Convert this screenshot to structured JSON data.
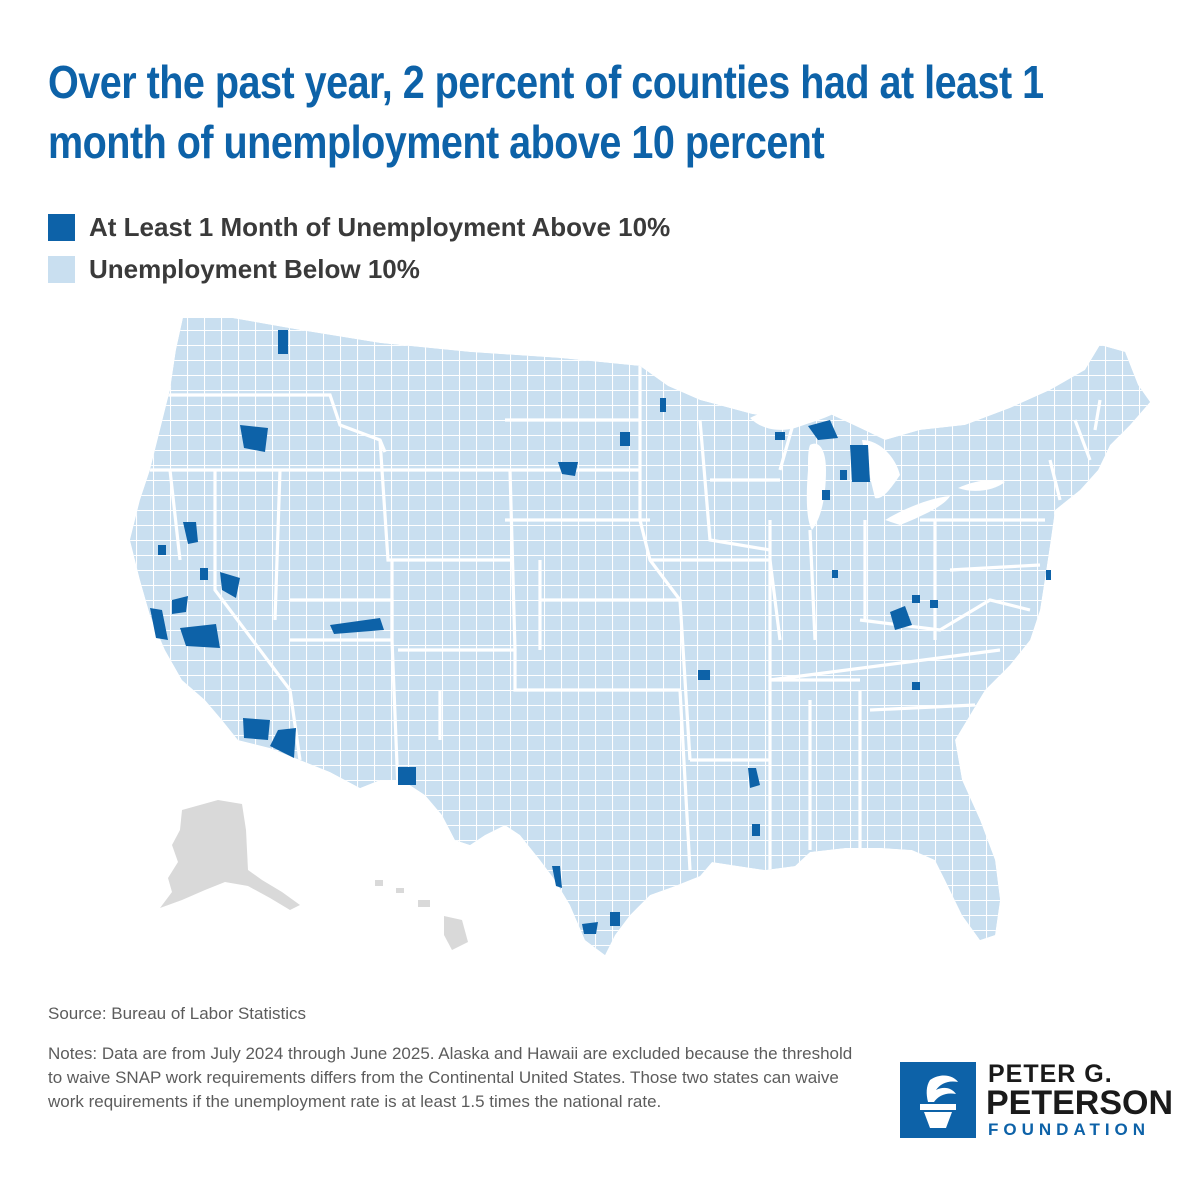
{
  "title": "Over the past year, 2 percent of counties had at least 1 month of unemployment above 10 percent",
  "legend": [
    {
      "label": "At Least 1 Month of Unemployment Above 10%",
      "color": "#0d62a8"
    },
    {
      "label": "Unemployment Below 10%",
      "color": "#c9dff0"
    }
  ],
  "colors": {
    "above": "#0d62a8",
    "below": "#c9dff0",
    "excluded": "#d9d9d9",
    "borders": "#ffffff"
  },
  "map": {
    "excluded_states": [
      "Alaska",
      "Hawaii"
    ]
  },
  "source": "Source: Bureau of Labor Statistics",
  "notes": "Notes: Data are from July 2024 through June 2025. Alaska and Hawaii are excluded because the threshold to waive SNAP work requirements differs from the Continental United States. Those two states can waive work requirements if the unemployment rate is at least 1.5 times the national rate.",
  "logo": {
    "line1": "PETER G.",
    "line2": "PETERSON",
    "line3": "FOUNDATION",
    "icon": "torch-icon"
  }
}
